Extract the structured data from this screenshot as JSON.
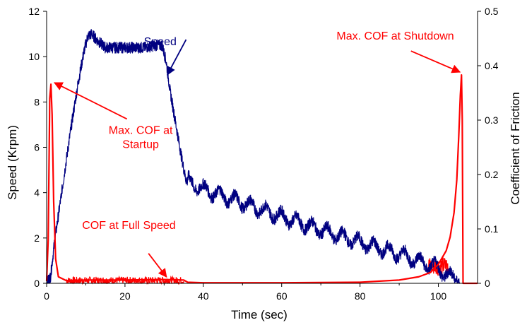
{
  "chart_data": {
    "type": "line",
    "title": "",
    "xlabel": "Time (sec)",
    "ylabel_left": "Speed (Krpm)",
    "ylabel_right": "Coefficient of Friction",
    "xlim": [
      0,
      110
    ],
    "ylim_left": [
      0,
      12
    ],
    "ylim_right": [
      0,
      0.5
    ],
    "x_ticks": [
      "0",
      "20",
      "40",
      "60",
      "80",
      "100"
    ],
    "y_left_ticks": [
      "0",
      "2",
      "4",
      "6",
      "8",
      "10",
      "12"
    ],
    "y_right_ticks": [
      "0",
      "0.1",
      "0.2",
      "0.3",
      "0.4",
      "0.5"
    ],
    "grid": false,
    "series": [
      {
        "axis": "left",
        "color": "#000080",
        "noise": 0.25,
        "x": [
          0,
          1,
          2,
          4,
          6,
          8,
          9.5,
          10.5,
          11.5,
          13,
          15,
          20,
          25,
          28,
          29.5,
          30.5,
          31.5,
          33,
          34.5,
          35.5,
          36,
          40,
          50,
          60,
          70,
          80,
          90,
          100,
          102,
          104,
          105,
          105.5
        ],
        "y": [
          0,
          0.3,
          1.8,
          4.2,
          6.6,
          8.8,
          10.2,
          10.9,
          11.0,
          10.7,
          10.4,
          10.4,
          10.4,
          10.5,
          10.5,
          9.8,
          8.5,
          7.0,
          5.5,
          4.6,
          4.5,
          4.15,
          3.55,
          2.95,
          2.35,
          1.8,
          1.3,
          0.65,
          0.4,
          0.2,
          0.08,
          0
        ]
      },
      {
        "axis": "right",
        "color": "#ff0000",
        "x": [
          0,
          0.4,
          0.8,
          1.1,
          1.4,
          1.8,
          2.3,
          3,
          5,
          10,
          20,
          30,
          35,
          36,
          40,
          60,
          80,
          90,
          95,
          98,
          100,
          102,
          103,
          104,
          104.7,
          105.2,
          105.6,
          105.9,
          106.1,
          106.3,
          110
        ],
        "y": [
          0.004,
          0.08,
          0.34,
          0.366,
          0.31,
          0.15,
          0.045,
          0.012,
          0.005,
          0.006,
          0.006,
          0.007,
          0.006,
          0.002,
          0.001,
          0.001,
          0.002,
          0.006,
          0.012,
          0.02,
          0.035,
          0.06,
          0.085,
          0.13,
          0.19,
          0.27,
          0.345,
          0.383,
          0.3,
          0,
          0
        ]
      }
    ],
    "bands": [
      {
        "axis": "right",
        "color": "#ff0000",
        "x0": 5,
        "x1": 35,
        "amp": 0.007,
        "base": 0.005
      },
      {
        "axis": "right",
        "color": "#ff0000",
        "x0": 97.5,
        "x1": 102.5,
        "amp": 0.018,
        "base": 0.032
      }
    ],
    "annotations": [
      {
        "id": "speed",
        "lines": [
          "Speed"
        ],
        "color": "#000080",
        "x": 29,
        "y": 10.5,
        "axis": "left",
        "arrow_to": [
          30.8,
          9.2
        ],
        "arrow_axis": "left",
        "arrow_from": [
          35.6,
          10.75
        ]
      },
      {
        "id": "max-cof-startup",
        "lines": [
          "Max. COF at",
          "Startup"
        ],
        "color": "#ff0000",
        "x": 24,
        "y": 6.6,
        "axis": "left",
        "arrow_from": [
          20.5,
          7.25
        ],
        "arrow_to": [
          2.0,
          8.85
        ],
        "arrow_axis": "left"
      },
      {
        "id": "cof-full-speed",
        "lines": [
          "COF at Full Speed"
        ],
        "color": "#ff0000",
        "x": 21,
        "y": 2.4,
        "axis": "left",
        "arrow_from": [
          26,
          1.32
        ],
        "arrow_to": [
          30.6,
          0.28
        ],
        "arrow_axis": "left"
      },
      {
        "id": "max-cof-shutdown",
        "lines": [
          "Max. COF at Shutdown"
        ],
        "color": "#ff0000",
        "x": 89,
        "y": 10.75,
        "axis": "left",
        "arrow_from": [
          93,
          10.25
        ],
        "arrow_to": [
          105.5,
          9.32
        ],
        "arrow_axis": "left"
      }
    ]
  }
}
